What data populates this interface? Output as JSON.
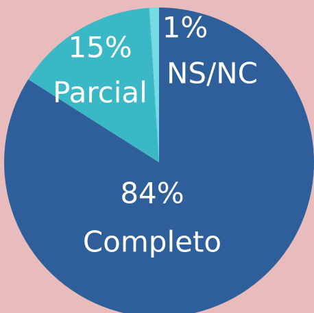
{
  "chart_data": {
    "type": "pie",
    "categories": [
      "Completo",
      "Parcial",
      "NS/NC"
    ],
    "values": [
      84,
      15,
      1
    ],
    "value_labels": [
      "84%",
      "15%",
      "1%"
    ],
    "colors": [
      "#2e5f9a",
      "#3bb8c6",
      "#72dbe3"
    ]
  }
}
